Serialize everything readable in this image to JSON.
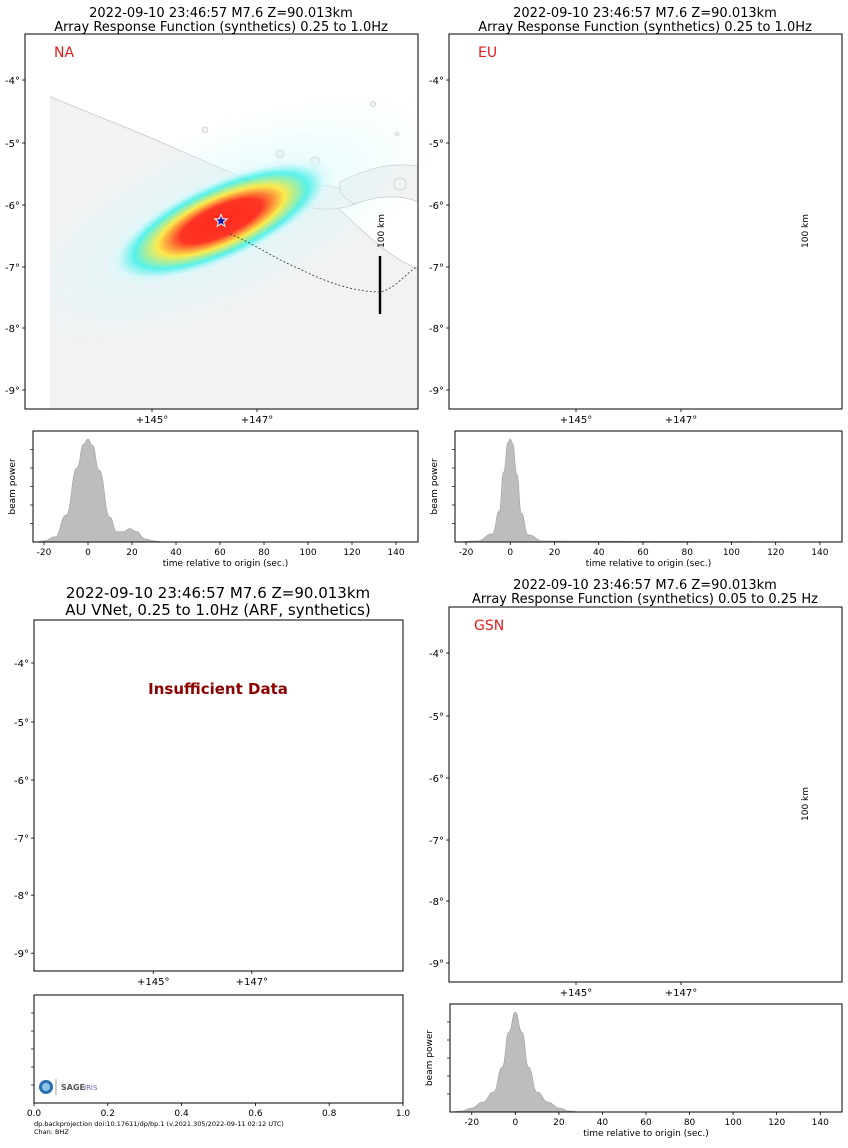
{
  "figure": {
    "footer_line1": "dp.backprojection doi:10.17611/dp/bp.1 (v.2021.305/2022-09-11 02:12 UTC)",
    "footer_line2": "Chan: BHZ",
    "logo_text": "SAGE",
    "logo_subtext": "IRIS"
  },
  "panels": [
    {
      "title1": "2022-09-10 23:46:57 M7.6 Z=90.013km",
      "title2": "Array Response Function (synthetics) 0.25 to 1.0Hz",
      "network": "NA",
      "scale_label": "100 km",
      "map_lat_ticks": [
        "-4°",
        "-5°",
        "-6°",
        "-7°",
        "-8°",
        "-9°"
      ],
      "map_lon_ticks": [
        "+145°",
        "+147°"
      ],
      "blob": {
        "rx": 125,
        "ry": 42,
        "rot": -24,
        "colors": [
          "#ff2a1a",
          "#ffe93a",
          "#3ff0e8",
          "#d6f8fb"
        ]
      }
    },
    {
      "title1": "2022-09-10 23:46:57 M7.6 Z=90.013km",
      "title2": "Array Response Function (synthetics) 0.25 to 1.0Hz",
      "network": "EU",
      "scale_label": "100 km",
      "map_lat_ticks": [
        "-4°",
        "-5°",
        "-6°",
        "-7°",
        "-8°",
        "-9°"
      ],
      "map_lon_ticks": [
        "+145°",
        "+147°"
      ],
      "blob": {
        "rx": 26,
        "ry": 20,
        "rot": -15,
        "colors": [
          "#ff2a1a",
          "#ffe93a",
          "#3ff0e8",
          "#e4f8fa"
        ]
      }
    },
    {
      "title1": "2022-09-10 23:46:57 M7.6 Z=90.013km",
      "title2": "AU VNet, 0.25 to 1.0Hz (ARF, synthetics)",
      "network": "",
      "message": "Insufficient Data",
      "map_lat_ticks": [
        "-4°",
        "-5°",
        "-6°",
        "-7°",
        "-8°",
        "-9°"
      ],
      "map_lon_ticks": [
        "+145°",
        "+147°"
      ]
    },
    {
      "title1": "2022-09-10 23:46:57 M7.6 Z=90.013km",
      "title2": "Array Response Function (synthetics) 0.05 to 0.25 Hz",
      "network": "GSN",
      "scale_label": "100 km",
      "map_lat_ticks": [
        "-4°",
        "-5°",
        "-6°",
        "-7°",
        "-8°",
        "-9°"
      ],
      "map_lon_ticks": [
        "+145°",
        "+147°"
      ],
      "blob": {
        "rx": 95,
        "ry": 62,
        "rot": 40,
        "colors": [
          "#ff2a1a",
          "#ffe93a",
          "#3ff0e8",
          "#dcf8fb"
        ]
      }
    }
  ],
  "chart_data": [
    {
      "type": "area",
      "network": "NA",
      "ylabel": "beam power",
      "xlabel": "time relative to origin (sec.)",
      "xlim": [
        -25,
        150
      ],
      "xticks": [
        -20,
        0,
        20,
        40,
        60,
        80,
        100,
        120,
        140
      ],
      "x": [
        -25,
        -20,
        -15,
        -10,
        -5,
        -2,
        0,
        2,
        5,
        10,
        13,
        16,
        19,
        22,
        26,
        30,
        35,
        150
      ],
      "y": [
        0,
        0.01,
        0.05,
        0.26,
        0.72,
        0.95,
        1.0,
        0.94,
        0.7,
        0.24,
        0.1,
        0.1,
        0.13,
        0.1,
        0.03,
        0.01,
        0,
        0
      ]
    },
    {
      "type": "area",
      "network": "EU",
      "ylabel": "beam power",
      "xlabel": "time relative to origin (sec.)",
      "xlim": [
        -25,
        150
      ],
      "xticks": [
        -20,
        0,
        20,
        40,
        60,
        80,
        100,
        120,
        140
      ],
      "x": [
        -25,
        -15,
        -8,
        -5,
        -3,
        -1,
        0,
        1,
        3,
        5,
        8,
        15,
        150
      ],
      "y": [
        0,
        0.01,
        0.08,
        0.3,
        0.68,
        0.97,
        1.0,
        0.96,
        0.66,
        0.28,
        0.07,
        0.01,
        0
      ]
    },
    {
      "type": "area",
      "network": "AU VNet",
      "ylabel": "",
      "xlabel": "",
      "xlim": [
        0,
        1.0
      ],
      "xticks": [
        "0.0",
        "0.2",
        "0.4",
        "0.6",
        "0.8",
        "1.0"
      ],
      "x": [],
      "y": []
    },
    {
      "type": "area",
      "network": "GSN",
      "ylabel": "beam power",
      "xlabel": "time relative to origin (sec.)",
      "xlim": [
        -30,
        150
      ],
      "xticks": [
        -20,
        0,
        20,
        40,
        60,
        80,
        100,
        120,
        140
      ],
      "x": [
        -30,
        -25,
        -20,
        -15,
        -10,
        -6,
        -3,
        0,
        3,
        6,
        10,
        15,
        20,
        25,
        30,
        150
      ],
      "y": [
        0,
        0.01,
        0.04,
        0.1,
        0.2,
        0.45,
        0.8,
        1.0,
        0.8,
        0.45,
        0.2,
        0.1,
        0.04,
        0.01,
        0,
        0
      ]
    }
  ]
}
